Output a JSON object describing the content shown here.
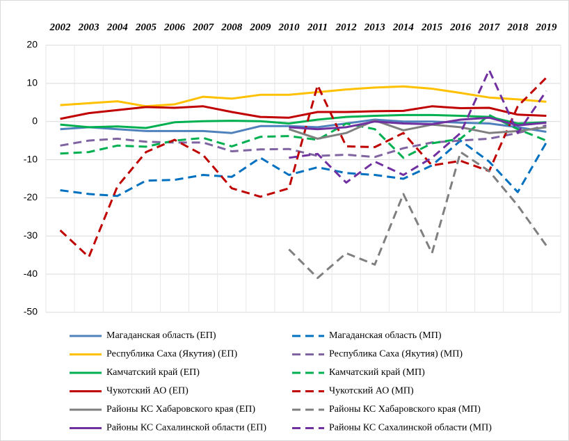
{
  "chart_data": {
    "type": "line",
    "categories": [
      "2002",
      "2003",
      "2004",
      "2005",
      "2006",
      "2007",
      "2008",
      "2009",
      "2010",
      "2011",
      "2012",
      "2013",
      "2014",
      "2015",
      "2016",
      "2017",
      "2018",
      "2019"
    ],
    "ylim": [
      -50,
      20
    ],
    "yticks": [
      -50,
      -40,
      -30,
      -20,
      -10,
      0,
      10,
      20
    ],
    "grid": true,
    "series": [
      {
        "name": "Магаданская область (ЕП)",
        "color": "#4f81bd",
        "dash": false,
        "values": [
          -2,
          -1.5,
          -2,
          -2.5,
          -2.5,
          -2.5,
          -3,
          -1.2,
          -1.2,
          -1.5,
          -0.5,
          0.5,
          0,
          0,
          -0.3,
          -0.5,
          -1.5,
          -2.7
        ]
      },
      {
        "name": "Магаданская область (МП)",
        "color": "#0070c0",
        "dash": true,
        "values": [
          -18,
          -19,
          -19.5,
          -15.5,
          -15.3,
          -14,
          -14.5,
          -9.5,
          -14,
          -12,
          -13.5,
          -14,
          -15,
          -11.5,
          -5,
          -10.5,
          -18.5,
          -5.5
        ]
      },
      {
        "name": "Республика Саха (Якутия) (ЕП)",
        "color": "#ffc000",
        "dash": false,
        "values": [
          4.3,
          4.8,
          5.3,
          4,
          4.5,
          6.5,
          6,
          7,
          7,
          7.7,
          8.4,
          8.9,
          9.2,
          8.6,
          7.5,
          6.3,
          5.8,
          5.2
        ]
      },
      {
        "name": "Республика Саха (Якутия) (МП)",
        "color": "#8064a2",
        "dash": true,
        "values": [
          -6.3,
          -5,
          -4.5,
          -5.3,
          -5.5,
          -5.5,
          -7.8,
          -7.3,
          -7.2,
          -9,
          -8.7,
          -9.3,
          -7,
          -5.5,
          -5,
          -4.5,
          -3,
          -1
        ]
      },
      {
        "name": "Камчатский край (ЕП)",
        "color": "#00b050",
        "dash": false,
        "values": [
          -0.8,
          -1.5,
          -1.3,
          -1.7,
          -0.2,
          0.1,
          0.2,
          0.1,
          -0.5,
          0.5,
          1.2,
          1.5,
          1.7,
          1.7,
          1.5,
          1.2,
          -0.5,
          -0.2
        ]
      },
      {
        "name": "Камчатский край (МП)",
        "color": "#00b050",
        "dash": true,
        "values": [
          -8.4,
          -8,
          -6.3,
          -6.6,
          -5,
          -4.3,
          -6.5,
          -4,
          -3.8,
          -4.8,
          -0.5,
          -2,
          -9.5,
          -5.7,
          -4.5,
          1.7,
          -2,
          -5
        ]
      },
      {
        "name": "Чукотский АО (ЕП)",
        "color": "#c00000",
        "dash": false,
        "values": [
          0.7,
          2.2,
          3,
          3.8,
          3.6,
          4,
          2.5,
          1.2,
          1,
          2.5,
          2.5,
          2.7,
          2.8,
          4,
          3.5,
          3.6,
          1.8,
          1.5
        ]
      },
      {
        "name": "Чукотский АО (МП)",
        "color": "#c00000",
        "dash": true,
        "values": [
          -28.5,
          -35.5,
          -17,
          -8,
          -4.8,
          -8.8,
          -17.5,
          -19.7,
          -17.5,
          9.5,
          -6.5,
          -6.7,
          -3,
          -11.5,
          -10.3,
          -13,
          4,
          11.5
        ]
      },
      {
        "name": "Районы КС Хабаровского края (ЕП)",
        "color": "#7f7f7f",
        "dash": false,
        "values": [
          null,
          null,
          null,
          null,
          null,
          null,
          null,
          null,
          -2,
          -4.5,
          -3,
          0.3,
          -2.3,
          -0.8,
          -1.5,
          -3,
          -2.5,
          -1.5
        ]
      },
      {
        "name": "Районы КС Хабаровского края (МП)",
        "color": "#7f7f7f",
        "dash": true,
        "values": [
          null,
          null,
          null,
          null,
          null,
          null,
          null,
          null,
          -33.5,
          -41,
          -34.5,
          -37.5,
          -19,
          -34.5,
          -8,
          -13,
          -22,
          -32.5
        ]
      },
      {
        "name": "Районы КС Сахалинской области (ЕП)",
        "color": "#7030a0",
        "dash": false,
        "values": [
          null,
          null,
          null,
          null,
          null,
          null,
          null,
          null,
          -1.5,
          -2,
          -1.5,
          0,
          -0.5,
          -0.7,
          0.5,
          1,
          -1,
          -0.3
        ]
      },
      {
        "name": "Районы КС Сахалинской области (МП)",
        "color": "#7030a0",
        "dash": true,
        "values": [
          null,
          null,
          null,
          null,
          null,
          null,
          null,
          null,
          -9.5,
          -8.5,
          -16,
          -10.5,
          -14,
          -9.5,
          -3,
          13.5,
          -3,
          8
        ]
      }
    ]
  }
}
